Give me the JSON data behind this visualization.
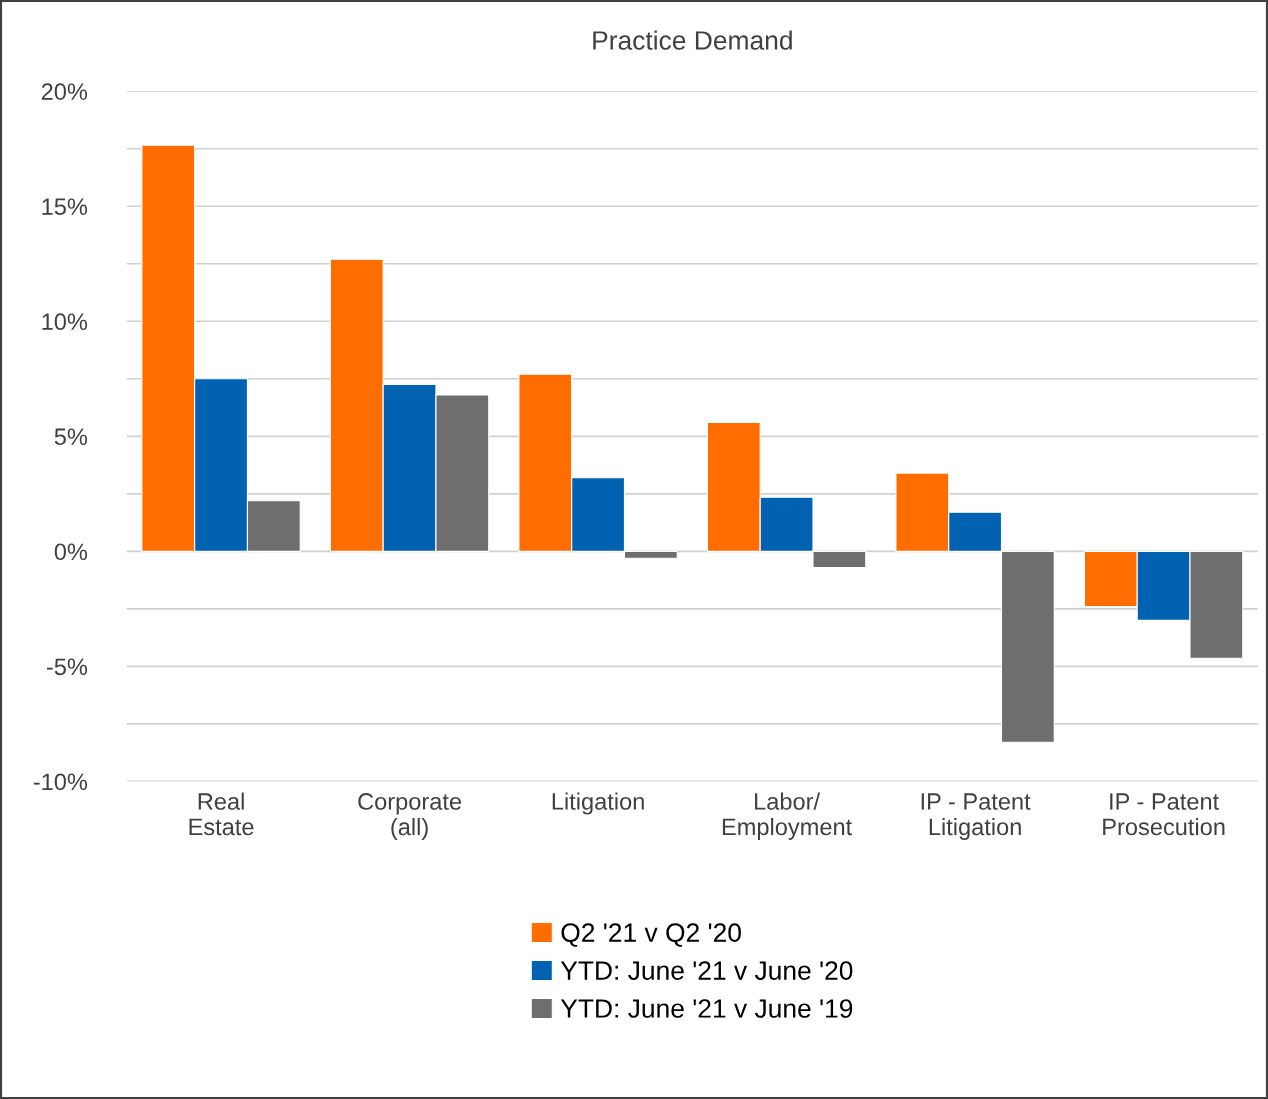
{
  "chart_data": {
    "type": "bar",
    "title": "Practice Demand",
    "categories": [
      "Real\nEstate",
      "Corporate\n(all)",
      "Litigation",
      "Labor/\nEmployment",
      "IP - Patent\nLitigation",
      "IP - Patent\nProsecution"
    ],
    "series": [
      {
        "name": "Q2 '21 v Q2 '20",
        "color": "#ff6d00",
        "values": [
          17.65,
          12.7,
          7.7,
          5.6,
          3.4,
          -2.4
        ]
      },
      {
        "name": "YTD: June '21 v June '20",
        "color": "#0062b0",
        "values": [
          7.5,
          7.25,
          3.2,
          2.35,
          1.7,
          -3.0
        ]
      },
      {
        "name": "YTD: June '21 v June '19",
        "color": "#6e6e6e",
        "values": [
          2.2,
          6.8,
          -0.3,
          -0.7,
          -8.3,
          -4.65
        ]
      }
    ],
    "ylim": [
      -10,
      20
    ],
    "yticks": [
      {
        "value": -10,
        "label": "-10%"
      },
      {
        "value": -7.5,
        "label": null
      },
      {
        "value": -5,
        "label": "-5%"
      },
      {
        "value": -2.5,
        "label": null
      },
      {
        "value": 0,
        "label": "0%"
      },
      {
        "value": 2.5,
        "label": null
      },
      {
        "value": 5,
        "label": "5%"
      },
      {
        "value": 7.5,
        "label": null
      },
      {
        "value": 10,
        "label": "10%"
      },
      {
        "value": 12.5,
        "label": null
      },
      {
        "value": 15,
        "label": "15%"
      },
      {
        "value": 17.5,
        "label": null
      },
      {
        "value": 20,
        "label": "20%"
      }
    ],
    "grid": "y",
    "legend": "bottom"
  }
}
